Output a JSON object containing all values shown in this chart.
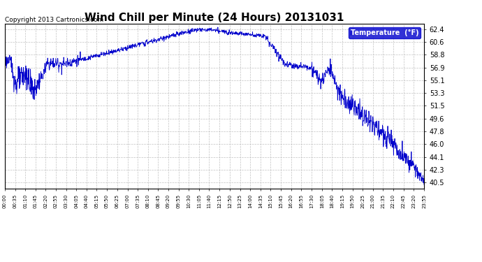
{
  "title": "Wind Chill per Minute (24 Hours) 20131031",
  "copyright_text": "Copyright 2013 Cartronics.com",
  "legend_label": "Temperature  (°F)",
  "line_color": "#0000CC",
  "background_color": "#ffffff",
  "plot_bg_color": "#ffffff",
  "grid_color": "#bbbbbb",
  "legend_bg_color": "#0000CC",
  "legend_text_color": "#ffffff",
  "y_ticks": [
    40.5,
    42.3,
    44.1,
    46.0,
    47.8,
    49.6,
    51.5,
    53.3,
    55.1,
    56.9,
    58.8,
    60.6,
    62.4
  ],
  "ylim": [
    39.6,
    63.2
  ],
  "x_tick_labels": [
    "00:00",
    "00:35",
    "01:10",
    "01:45",
    "02:20",
    "02:55",
    "03:30",
    "04:05",
    "04:40",
    "05:15",
    "05:50",
    "06:25",
    "07:00",
    "07:35",
    "08:10",
    "08:45",
    "09:20",
    "09:55",
    "10:30",
    "11:05",
    "11:40",
    "12:15",
    "12:50",
    "13:25",
    "14:00",
    "14:35",
    "15:10",
    "15:45",
    "16:20",
    "16:55",
    "17:30",
    "18:05",
    "18:40",
    "19:15",
    "19:50",
    "20:25",
    "21:00",
    "21:35",
    "22:10",
    "22:45",
    "23:20",
    "23:55"
  ],
  "title_fontsize": 11,
  "tick_fontsize": 7,
  "x_tick_fontsize": 5,
  "copyright_fontsize": 6.5
}
